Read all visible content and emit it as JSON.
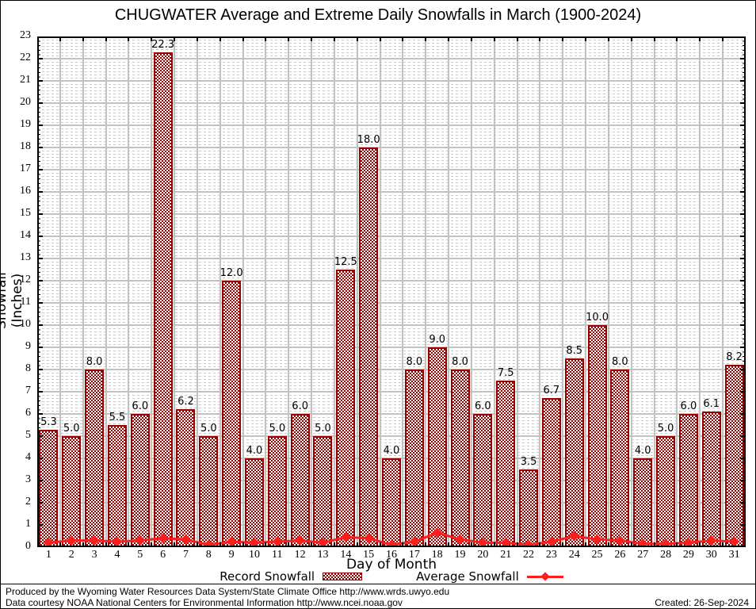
{
  "title": "CHUGWATER Average and Extreme Daily Snowfalls in March (1900-2024)",
  "y_axis": {
    "label": "Snowfall (Inches)",
    "min": 0,
    "max": 23,
    "tick_step": 1
  },
  "x_axis": {
    "label": "Day of Month"
  },
  "legend": {
    "record_label": "Record Snowfall",
    "average_label": "Average Snowfall"
  },
  "footer": {
    "line1": "Produced by the Wyoming Water Resources Data System/State Climate Office http://www.wrds.uwyo.edu",
    "line2": "Data courtesy NOAA National Centers for Environmental Information http://www.ncei.noaa.gov",
    "created": "Created: 26-Sep-2024"
  },
  "colors": {
    "bar": "#990000",
    "average_line": "#ff1c1c",
    "major_grid": "#c2c2c2",
    "minor_grid": "#c9c9c9",
    "frame": "#000000"
  },
  "chart_data": {
    "type": "bar",
    "title": "CHUGWATER Average and Extreme Daily Snowfalls in March (1900-2024)",
    "xlabel": "Day of Month",
    "ylabel": "Snowfall (Inches)",
    "ylim": [
      0,
      23
    ],
    "grid": true,
    "legend_position": "bottom",
    "categories": [
      1,
      2,
      3,
      4,
      5,
      6,
      7,
      8,
      9,
      10,
      11,
      12,
      13,
      14,
      15,
      16,
      17,
      18,
      19,
      20,
      21,
      22,
      23,
      24,
      25,
      26,
      27,
      28,
      29,
      30,
      31
    ],
    "series": [
      {
        "name": "Record Snowfall",
        "values": [
          5.3,
          5.0,
          8.0,
          5.5,
          6.0,
          22.3,
          6.2,
          5.0,
          12.0,
          4.0,
          5.0,
          6.0,
          5.0,
          12.5,
          18.0,
          4.0,
          8.0,
          9.0,
          8.0,
          6.0,
          7.5,
          3.5,
          6.7,
          8.5,
          10.0,
          8.0,
          4.0,
          5.0,
          6.0,
          6.1,
          8.2
        ]
      },
      {
        "name": "Average Snowfall",
        "values": [
          0.2,
          0.3,
          0.3,
          0.25,
          0.3,
          0.4,
          0.35,
          0.1,
          0.25,
          0.2,
          0.25,
          0.3,
          0.2,
          0.45,
          0.4,
          0.1,
          0.25,
          0.65,
          0.35,
          0.2,
          0.2,
          0.1,
          0.25,
          0.5,
          0.35,
          0.3,
          0.15,
          0.15,
          0.2,
          0.3,
          0.25
        ]
      }
    ]
  }
}
